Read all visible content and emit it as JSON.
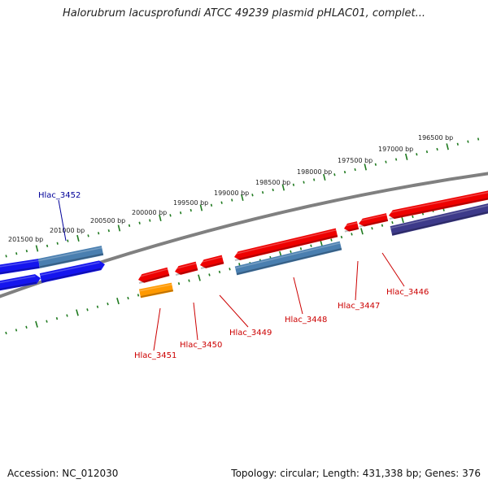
{
  "title": "Halorubrum lacusprofundi ATCC 49239 plasmid pHLAC01, complet...",
  "footer": {
    "accession": "Accession: NC_012030",
    "summary": "Topology: circular; Length: 431,338 bp; Genes: 376"
  },
  "scale_labels": [
    "201500 bp",
    "201000 bp",
    "200500 bp",
    "200000 bp",
    "199500 bp",
    "199000 bp",
    "198500 bp",
    "198000 bp",
    "197500 bp",
    "197000 bp",
    "196500 bp"
  ],
  "gene_labels": [
    "Hlac_3452",
    "Hlac_3451",
    "Hlac_3450",
    "Hlac_3449",
    "Hlac_3448",
    "Hlac_3447",
    "Hlac_3446"
  ],
  "colors": {
    "backbone": "#808080",
    "tick": "#1f7a1f",
    "red_gene": "#ee0000",
    "blue_gene": "#1515ee",
    "steel_gene": "#4a7fb0",
    "purple_gene": "#3d3a8a",
    "orange_gene": "#ff9900",
    "red_label": "#cc0000",
    "blue_label": "#000099"
  }
}
